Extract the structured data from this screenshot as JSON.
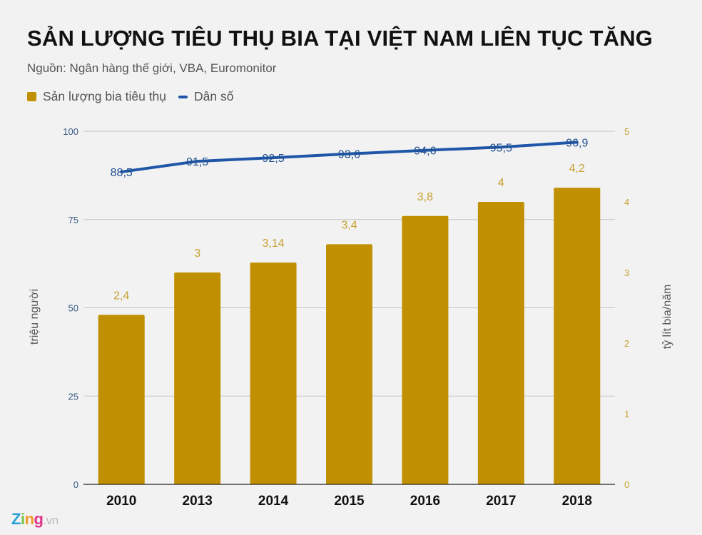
{
  "header": {
    "title": "SẢN LƯỢNG TIÊU THỤ BIA TẠI VIỆT NAM LIÊN TỤC TĂNG",
    "subtitle": "Nguồn: Ngân hàng thế giới, VBA, Euromonitor"
  },
  "legend": {
    "bar_label": "Sản lượng bia tiêu thụ",
    "line_label": "Dân số"
  },
  "axes": {
    "left_label": "triệu người",
    "right_label": "tỷ lít bia/năm",
    "left_ticks": [
      "0",
      "25",
      "50",
      "75",
      "100"
    ],
    "right_ticks": [
      "0",
      "1",
      "2",
      "3",
      "4",
      "5"
    ]
  },
  "colors": {
    "bar": "#c09000",
    "line": "#1f56a8",
    "bar_label": "#c8a030",
    "line_label": "#1f4f8f",
    "background": "#f2f2f2"
  },
  "logo": {
    "brand": "Zing",
    "suffix": ".vn"
  },
  "chart_data": {
    "type": "bar+line",
    "title": "SẢN LƯỢNG TIÊU THỤ BIA TẠI VIỆT NAM LIÊN TỤC TĂNG",
    "subtitle": "Nguồn: Ngân hàng thế giới, VBA, Euromonitor",
    "categories": [
      "2010",
      "2013",
      "2014",
      "2015",
      "2016",
      "2017",
      "2018"
    ],
    "series": [
      {
        "name": "Sản lượng bia tiêu thụ",
        "type": "bar",
        "axis": "right",
        "values": [
          2.4,
          3,
          3.14,
          3.4,
          3.8,
          4,
          4.2
        ],
        "labels": [
          "2,4",
          "3",
          "3,14",
          "3,4",
          "3,8",
          "4",
          "4,2"
        ]
      },
      {
        "name": "Dân số",
        "type": "line",
        "axis": "left",
        "values": [
          88.5,
          91.5,
          92.5,
          93.6,
          94.6,
          95.5,
          96.9
        ],
        "labels": [
          "88,5",
          "91,5",
          "92,5",
          "93,6",
          "94,6",
          "95,5",
          "96,9"
        ]
      }
    ],
    "ylabel_left": "triệu người",
    "ylabel_right": "tỷ lít bia/năm",
    "ylim_left": [
      0,
      100
    ],
    "ylim_right": [
      0,
      5
    ],
    "grid": true,
    "legend_position": "top-left"
  }
}
